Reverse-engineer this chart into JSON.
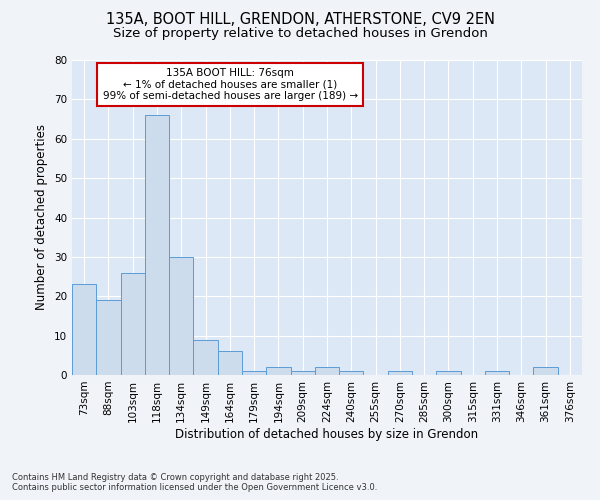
{
  "title_line1": "135A, BOOT HILL, GRENDON, ATHERSTONE, CV9 2EN",
  "title_line2": "Size of property relative to detached houses in Grendon",
  "xlabel": "Distribution of detached houses by size in Grendon",
  "ylabel": "Number of detached properties",
  "categories": [
    "73sqm",
    "88sqm",
    "103sqm",
    "118sqm",
    "134sqm",
    "149sqm",
    "164sqm",
    "179sqm",
    "194sqm",
    "209sqm",
    "224sqm",
    "240sqm",
    "255sqm",
    "270sqm",
    "285sqm",
    "300sqm",
    "315sqm",
    "331sqm",
    "346sqm",
    "361sqm",
    "376sqm"
  ],
  "values": [
    23,
    19,
    26,
    66,
    30,
    9,
    6,
    1,
    2,
    1,
    2,
    1,
    0,
    1,
    0,
    1,
    0,
    1,
    0,
    2,
    0
  ],
  "bar_color": "#ccdcec",
  "bar_edge_color": "#5b9bd5",
  "ylim": [
    0,
    80
  ],
  "yticks": [
    0,
    10,
    20,
    30,
    40,
    50,
    60,
    70,
    80
  ],
  "annotation_title": "135A BOOT HILL: 76sqm",
  "annotation_line2": "← 1% of detached houses are smaller (1)",
  "annotation_line3": "99% of semi-detached houses are larger (189) →",
  "annotation_box_color": "#ffffff",
  "annotation_box_edge": "#cc0000",
  "footer_line1": "Contains HM Land Registry data © Crown copyright and database right 2025.",
  "footer_line2": "Contains public sector information licensed under the Open Government Licence v3.0.",
  "bg_color": "#f0f4f8",
  "plot_bg_color": "#dce8f5",
  "grid_color": "#ffffff",
  "title_fontsize": 10.5,
  "subtitle_fontsize": 9.5,
  "axis_label_fontsize": 8.5,
  "tick_fontsize": 7.5,
  "annotation_fontsize": 7.5,
  "footer_fontsize": 6.0
}
